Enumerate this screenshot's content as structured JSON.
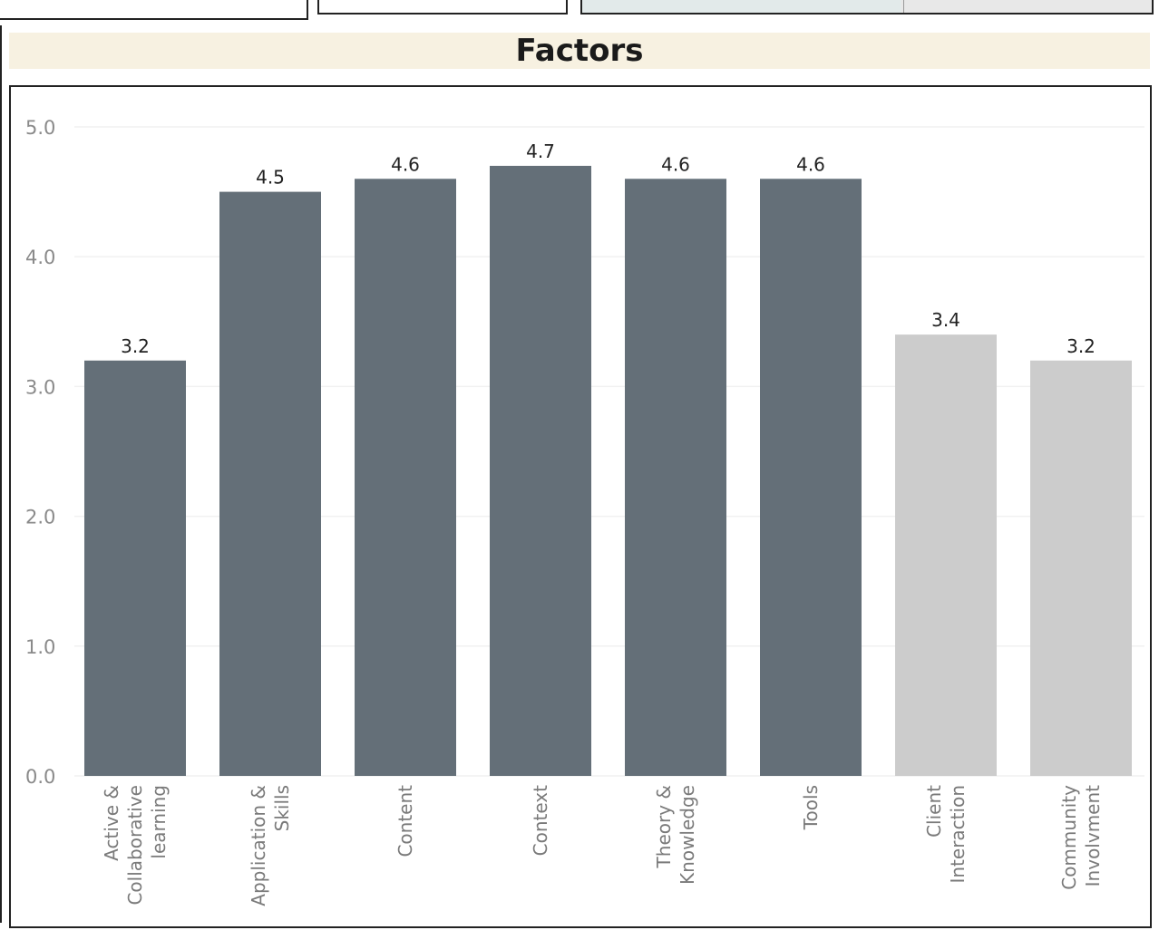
{
  "chart_data": {
    "type": "bar",
    "title": "Factors",
    "categories": [
      [
        "Active &",
        "Collaborative",
        "learning"
      ],
      [
        "Application &",
        "Skills"
      ],
      [
        "Content"
      ],
      [
        "Context"
      ],
      [
        "Theory &",
        "Knowledge"
      ],
      [
        "Tools"
      ],
      [
        "Client",
        "Interaction"
      ],
      [
        "Community",
        "Involvment"
      ]
    ],
    "values": [
      3.2,
      4.5,
      4.6,
      4.7,
      4.6,
      4.6,
      3.4,
      3.2
    ],
    "value_labels": [
      "3.2",
      "4.5",
      "4.6",
      "4.7",
      "4.6",
      "4.6",
      "3.4",
      "3.2"
    ],
    "highlighted": [
      true,
      true,
      true,
      true,
      true,
      true,
      false,
      false
    ],
    "ylim": [
      0,
      5
    ],
    "yticks": [
      "0.0",
      "1.0",
      "2.0",
      "3.0",
      "4.0",
      "5.0"
    ],
    "grid": true,
    "colors": {
      "primary": "#646f78",
      "muted": "#cccccc",
      "title_bg": "#f7f1e1"
    }
  }
}
